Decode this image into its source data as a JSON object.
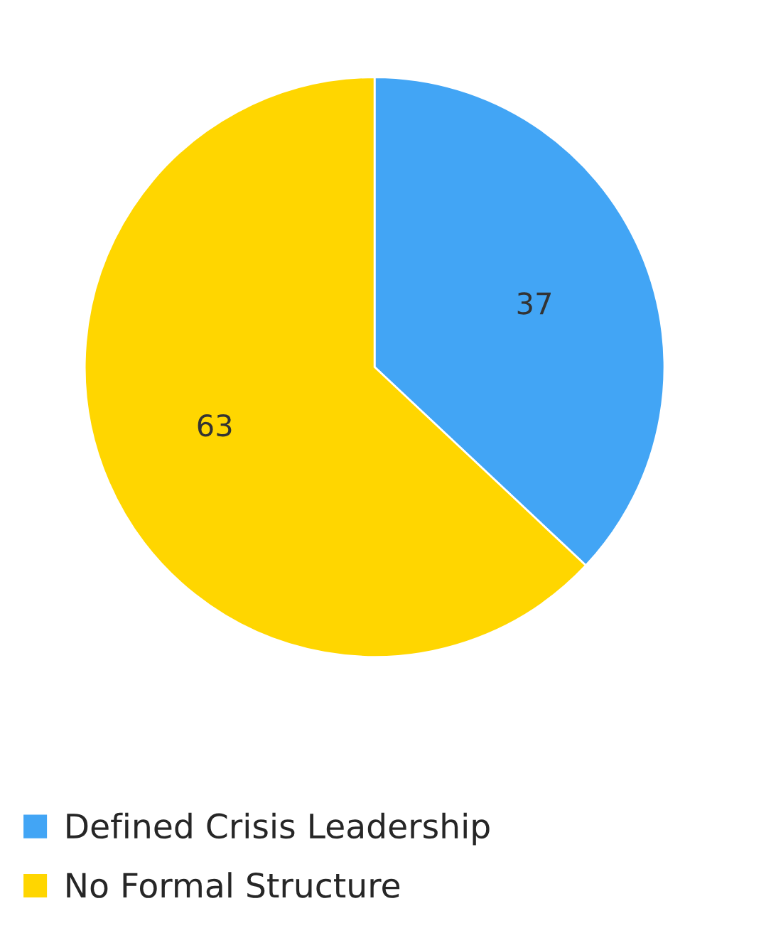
{
  "chart_data": {
    "type": "pie",
    "categories": [
      "Defined Crisis Leadership",
      "No Formal Structure"
    ],
    "values": [
      37,
      63
    ],
    "colors": [
      "#42a5f5",
      "#ffd600"
    ],
    "data_labels": true,
    "legend": "bottom"
  }
}
